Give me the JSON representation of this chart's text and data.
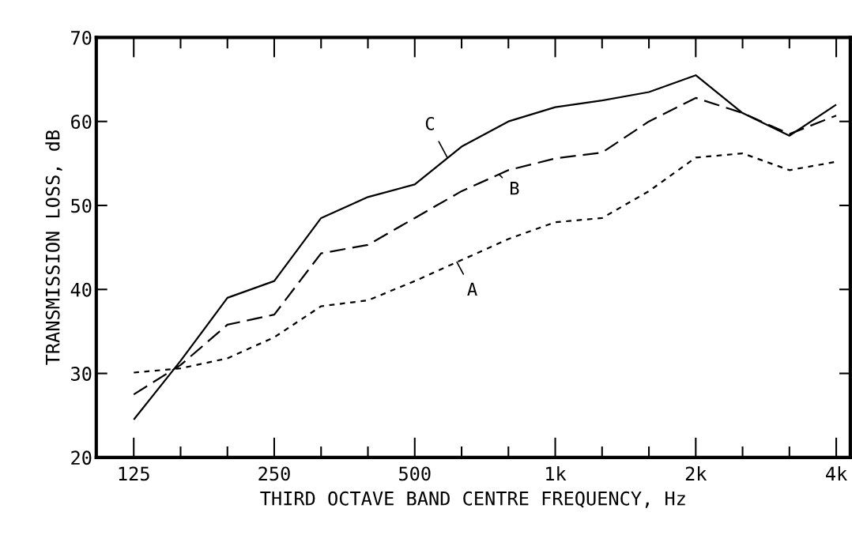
{
  "chart_data": {
    "type": "line",
    "xlabel": "THIRD OCTAVE BAND CENTRE FREQUENCY, Hz",
    "ylabel": "TRANSMISSION LOSS, dB",
    "categories": [
      "125",
      null,
      null,
      "250",
      null,
      null,
      "500",
      null,
      null,
      "1k",
      null,
      null,
      "2k",
      null,
      null,
      "4k"
    ],
    "ylim": [
      20,
      70
    ],
    "yticks": [
      20,
      30,
      40,
      50,
      60,
      70
    ],
    "grid": false,
    "marker": "none",
    "annotations": [
      "A",
      "B",
      "C"
    ],
    "series": [
      {
        "color": "#000000",
        "line_style": "dotted",
        "values": [
          30.1,
          30.6,
          31.8,
          34.3,
          38,
          38.7,
          41,
          43.5,
          46,
          48,
          48.5,
          51.7,
          55.7,
          56.2,
          54.2,
          55.2
        ]
      },
      {
        "color": "#000000",
        "line_style": "dashed",
        "values": [
          27.5,
          31,
          35.8,
          37,
          44.3,
          45.3,
          48.5,
          51.7,
          54.2,
          55.6,
          56.3,
          60,
          62.8,
          61,
          58.5,
          60.7
        ]
      },
      {
        "color": "#000000",
        "line_style": "solid",
        "values": [
          24.5,
          31.5,
          39,
          41,
          48.5,
          51,
          52.5,
          57,
          60,
          61.7,
          62.5,
          63.5,
          65.5,
          61,
          58.3,
          62
        ]
      }
    ]
  }
}
